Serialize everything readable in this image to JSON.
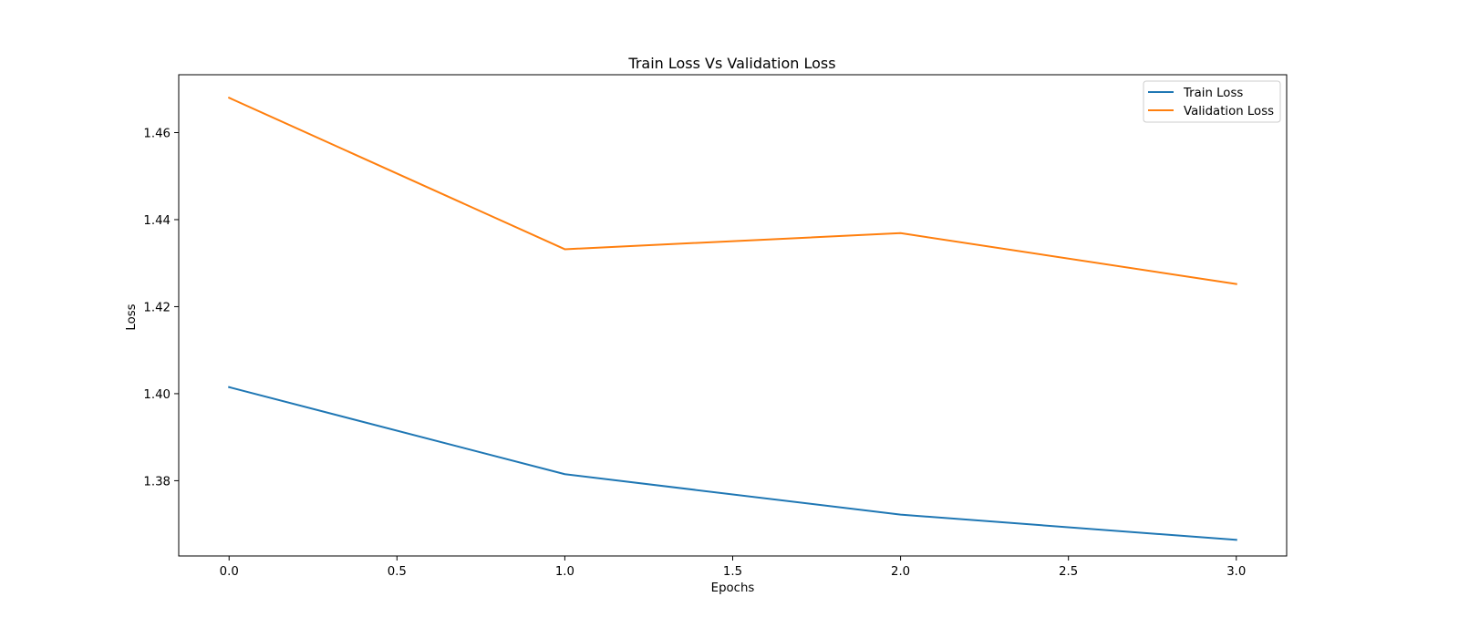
{
  "chart_data": {
    "type": "line",
    "title": "Train Loss Vs Validation Loss",
    "xlabel": "Epochs",
    "ylabel": "Loss",
    "x": [
      0,
      1,
      2,
      3
    ],
    "series": [
      {
        "name": "Train Loss",
        "values": [
          1.4015,
          1.3815,
          1.3722,
          1.3664
        ],
        "color": "#1f77b4"
      },
      {
        "name": "Validation Loss",
        "values": [
          1.468,
          1.4332,
          1.4369,
          1.4252
        ],
        "color": "#ff7f0e"
      }
    ],
    "xlim": [
      -0.15,
      3.15
    ],
    "ylim": [
      1.3627,
      1.4733
    ],
    "xticks": [
      0.0,
      0.5,
      1.0,
      1.5,
      2.0,
      2.5,
      3.0
    ],
    "xtick_labels": [
      "0.0",
      "0.5",
      "1.0",
      "1.5",
      "2.0",
      "2.5",
      "3.0"
    ],
    "yticks": [
      1.38,
      1.4,
      1.42,
      1.44,
      1.46
    ],
    "ytick_labels": [
      "1.38",
      "1.40",
      "1.42",
      "1.44",
      "1.46"
    ],
    "grid": false,
    "legend_position": "top-right"
  }
}
